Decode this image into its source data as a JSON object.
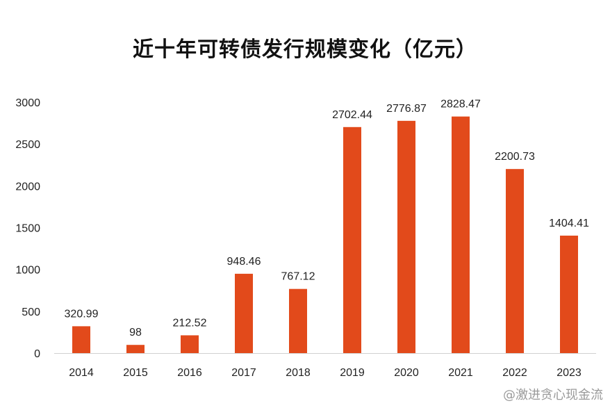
{
  "chart_data": {
    "type": "bar",
    "title": "近十年可转债发行规模变化（亿元）",
    "categories": [
      "2014",
      "2015",
      "2016",
      "2017",
      "2018",
      "2019",
      "2020",
      "2021",
      "2022",
      "2023"
    ],
    "values": [
      320.99,
      98,
      212.52,
      948.46,
      767.12,
      2702.44,
      2776.87,
      2828.47,
      2200.73,
      1404.41
    ],
    "data_labels": [
      "320.99",
      "98",
      "212.52",
      "948.46",
      "767.12",
      "2702.44",
      "2776.87",
      "2828.47",
      "2200.73",
      "1404.41"
    ],
    "y_ticks": [
      0,
      500,
      1000,
      1500,
      2000,
      2500,
      3000
    ],
    "ylim": [
      0,
      3000
    ],
    "xlabel": "",
    "ylabel": "",
    "grid": false,
    "legend": false,
    "bar_color": "#E24A1B"
  },
  "watermark": "@激进贪心现金流"
}
